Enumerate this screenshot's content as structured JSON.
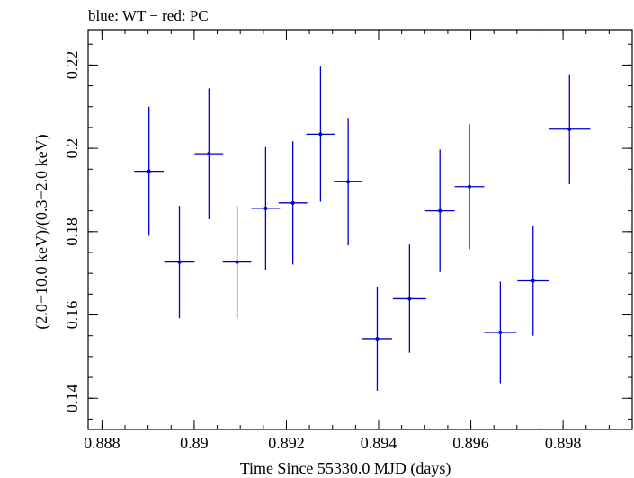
{
  "chart_data": {
    "type": "scatter",
    "title": "blue: WT − red: PC",
    "xlabel": "Time Since 55330.0 MJD (days)",
    "ylabel": "(2.0−10.0 keV)/(0.3−2.0 keV)",
    "xlim": [
      0.8877,
      0.8995
    ],
    "ylim": [
      0.1325,
      0.2285
    ],
    "x_ticks": [
      0.888,
      0.89,
      0.892,
      0.894,
      0.896,
      0.898
    ],
    "x_tick_labels": [
      "0.888",
      "0.89",
      "0.892",
      "0.894",
      "0.896",
      "0.898"
    ],
    "y_ticks": [
      0.14,
      0.16,
      0.18,
      0.2,
      0.22
    ],
    "y_tick_labels": [
      "0.14",
      "0.16",
      "0.18",
      "0.2",
      "0.22"
    ],
    "grid": false,
    "colors": {
      "WT": "#0000cc",
      "axes": "#000000"
    },
    "series": [
      {
        "name": "WT",
        "points": [
          {
            "x": 0.88902,
            "xerr": 0.00032,
            "y": 0.1945,
            "yerr": 0.0155
          },
          {
            "x": 0.88968,
            "xerr": 0.00033,
            "y": 0.1727,
            "yerr": 0.0135
          },
          {
            "x": 0.89032,
            "xerr": 0.00031,
            "y": 0.1987,
            "yerr": 0.0157
          },
          {
            "x": 0.89093,
            "xerr": 0.00031,
            "y": 0.1727,
            "yerr": 0.0135
          },
          {
            "x": 0.89155,
            "xerr": 0.00031,
            "y": 0.1856,
            "yerr": 0.0147
          },
          {
            "x": 0.89214,
            "xerr": 0.00031,
            "y": 0.1869,
            "yerr": 0.0148
          },
          {
            "x": 0.89274,
            "xerr": 0.00031,
            "y": 0.2034,
            "yerr": 0.0162
          },
          {
            "x": 0.89334,
            "xerr": 0.00031,
            "y": 0.192,
            "yerr": 0.0153
          },
          {
            "x": 0.89397,
            "xerr": 0.00032,
            "y": 0.1543,
            "yerr": 0.0125
          },
          {
            "x": 0.89467,
            "xerr": 0.00036,
            "y": 0.1639,
            "yerr": 0.013
          },
          {
            "x": 0.89533,
            "xerr": 0.00032,
            "y": 0.185,
            "yerr": 0.0147
          },
          {
            "x": 0.89597,
            "xerr": 0.00032,
            "y": 0.1908,
            "yerr": 0.015
          },
          {
            "x": 0.89664,
            "xerr": 0.00035,
            "y": 0.1558,
            "yerr": 0.0122
          },
          {
            "x": 0.89735,
            "xerr": 0.00034,
            "y": 0.1682,
            "yerr": 0.0132
          },
          {
            "x": 0.89814,
            "xerr": 0.00045,
            "y": 0.2046,
            "yerr": 0.0132
          }
        ]
      }
    ]
  }
}
